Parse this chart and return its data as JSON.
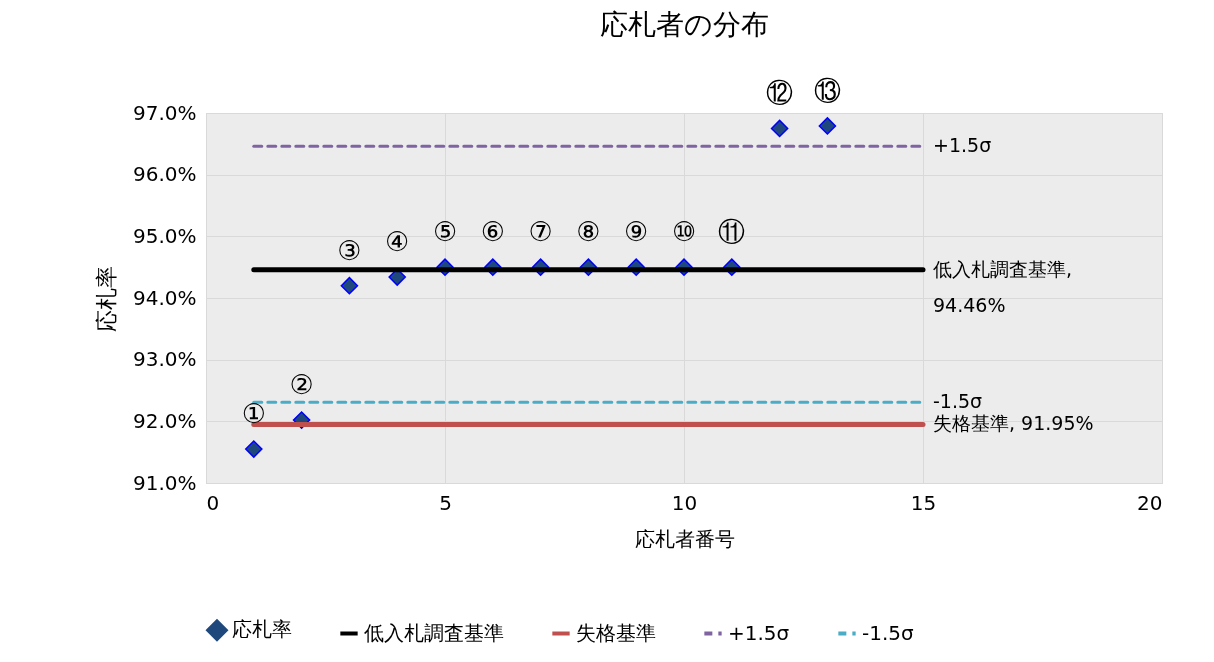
{
  "chart_data": {
    "type": "scatter",
    "title": "応札者の分布",
    "xlabel": "応札者番号",
    "ylabel": "応札率",
    "xlim": [
      0,
      20
    ],
    "xticks": [
      0,
      5,
      10,
      15,
      20
    ],
    "ylim": [
      91,
      97
    ],
    "yticks": [
      {
        "value": 91,
        "label": "91.0%"
      },
      {
        "value": 92,
        "label": "92.0%"
      },
      {
        "value": 93,
        "label": "93.0%"
      },
      {
        "value": 94,
        "label": "94.0%"
      },
      {
        "value": 95,
        "label": "95.0%"
      },
      {
        "value": 96,
        "label": "96.0%"
      },
      {
        "value": 97,
        "label": "97.0%"
      }
    ],
    "grid": true,
    "legend": "bottom",
    "series": [
      {
        "name": "応札率",
        "marker": "diamond",
        "color": "#1f497d",
        "x": [
          1,
          2,
          3,
          4,
          5,
          6,
          7,
          8,
          9,
          10,
          11,
          12,
          13
        ],
        "values": [
          91.55,
          92.02,
          94.2,
          94.34,
          94.5,
          94.5,
          94.5,
          94.5,
          94.5,
          94.5,
          94.5,
          96.75,
          96.79
        ]
      },
      {
        "name": "低入札調査基準",
        "type": "line",
        "color": "#000000",
        "line_style": "solid",
        "x": [
          1,
          15
        ],
        "values": [
          94.46,
          94.46
        ]
      },
      {
        "name": "失格基準",
        "type": "line",
        "color": "#c0504d",
        "line_style": "solid",
        "x": [
          1,
          15
        ],
        "values": [
          91.95,
          91.95
        ]
      },
      {
        "name": "+1.5σ",
        "type": "line",
        "color": "#8064a2",
        "line_style": "dashed",
        "x": [
          1,
          15
        ],
        "values": [
          96.46,
          96.46
        ]
      },
      {
        "name": "-1.5σ",
        "type": "line",
        "color": "#4bacc6",
        "line_style": "dashed",
        "x": [
          1,
          15
        ],
        "values": [
          92.31,
          92.31
        ]
      }
    ],
    "annotations": [
      {
        "text": "①",
        "x": 1,
        "y": 91.55
      },
      {
        "text": "②",
        "x": 2,
        "y": 92.02
      },
      {
        "text": "③",
        "x": 3,
        "y": 94.2
      },
      {
        "text": "④",
        "x": 4,
        "y": 94.34
      },
      {
        "text": "⑤",
        "x": 5,
        "y": 94.5
      },
      {
        "text": "⑥",
        "x": 6,
        "y": 94.5
      },
      {
        "text": "⑦",
        "x": 7,
        "y": 94.5
      },
      {
        "text": "⑧",
        "x": 8,
        "y": 94.5
      },
      {
        "text": "⑨",
        "x": 9,
        "y": 94.5
      },
      {
        "text": "⑩",
        "x": 10,
        "y": 94.5
      },
      {
        "text": "⑪",
        "x": 11,
        "y": 94.5
      },
      {
        "text": "⑫",
        "x": 12,
        "y": 96.75
      },
      {
        "text": "⑬",
        "x": 13,
        "y": 96.79
      },
      {
        "text": "+1.5σ",
        "x": 15,
        "y": 96.46
      },
      {
        "text": "低入札調査基準,\n94.46%",
        "x": 15,
        "y": 94.46
      },
      {
        "text": "-1.5σ",
        "x": 15,
        "y": 92.31
      },
      {
        "text": "失格基準, 91.95%",
        "x": 15,
        "y": 91.95
      }
    ]
  }
}
